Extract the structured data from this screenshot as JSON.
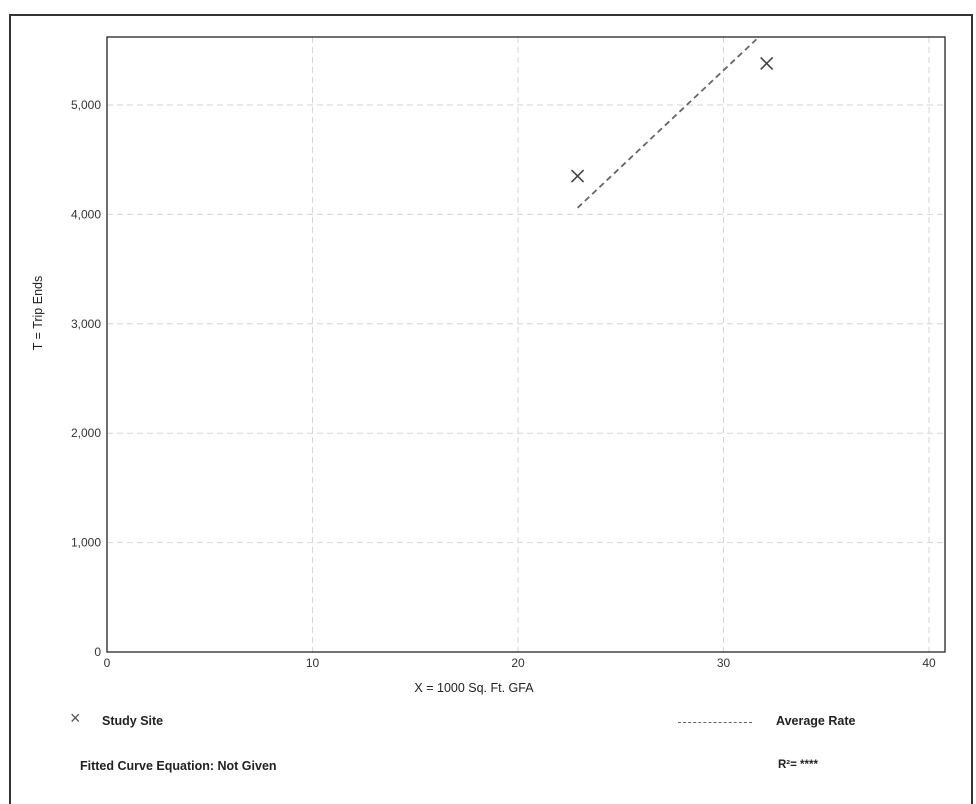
{
  "chart_data": {
    "type": "scatter",
    "xlabel": "X = 1000 Sq. Ft. GFA",
    "ylabel": "T = Trip Ends",
    "xlim": [
      0,
      40
    ],
    "ylim": [
      0,
      5600
    ],
    "x_ticks": [
      "0",
      "10",
      "20",
      "30",
      "40"
    ],
    "y_ticks": [
      "0",
      "1,000",
      "2,000",
      "3,000",
      "4,000",
      "5,000"
    ],
    "grid": true,
    "series": [
      {
        "name": "Study Site",
        "marker": "x",
        "points": [
          {
            "x": 22.9,
            "y": 4350
          },
          {
            "x": 32.1,
            "y": 5380
          }
        ]
      },
      {
        "name": "Average Rate",
        "style": "dashed-line",
        "points": [
          {
            "x": 22.9,
            "y": 4060
          },
          {
            "x": 31.6,
            "y": 5600
          }
        ]
      }
    ]
  },
  "legend": {
    "study_site_symbol": "×",
    "study_site_label": "Study Site",
    "average_rate_label": "Average Rate"
  },
  "footer": {
    "fitted_curve": "Fitted Curve Equation: Not Given",
    "r_squared": "R²= ****"
  },
  "colors": {
    "frame": "#333333",
    "grid": "#d6d6d6",
    "marker": "#444444",
    "average_line": "#666666"
  }
}
